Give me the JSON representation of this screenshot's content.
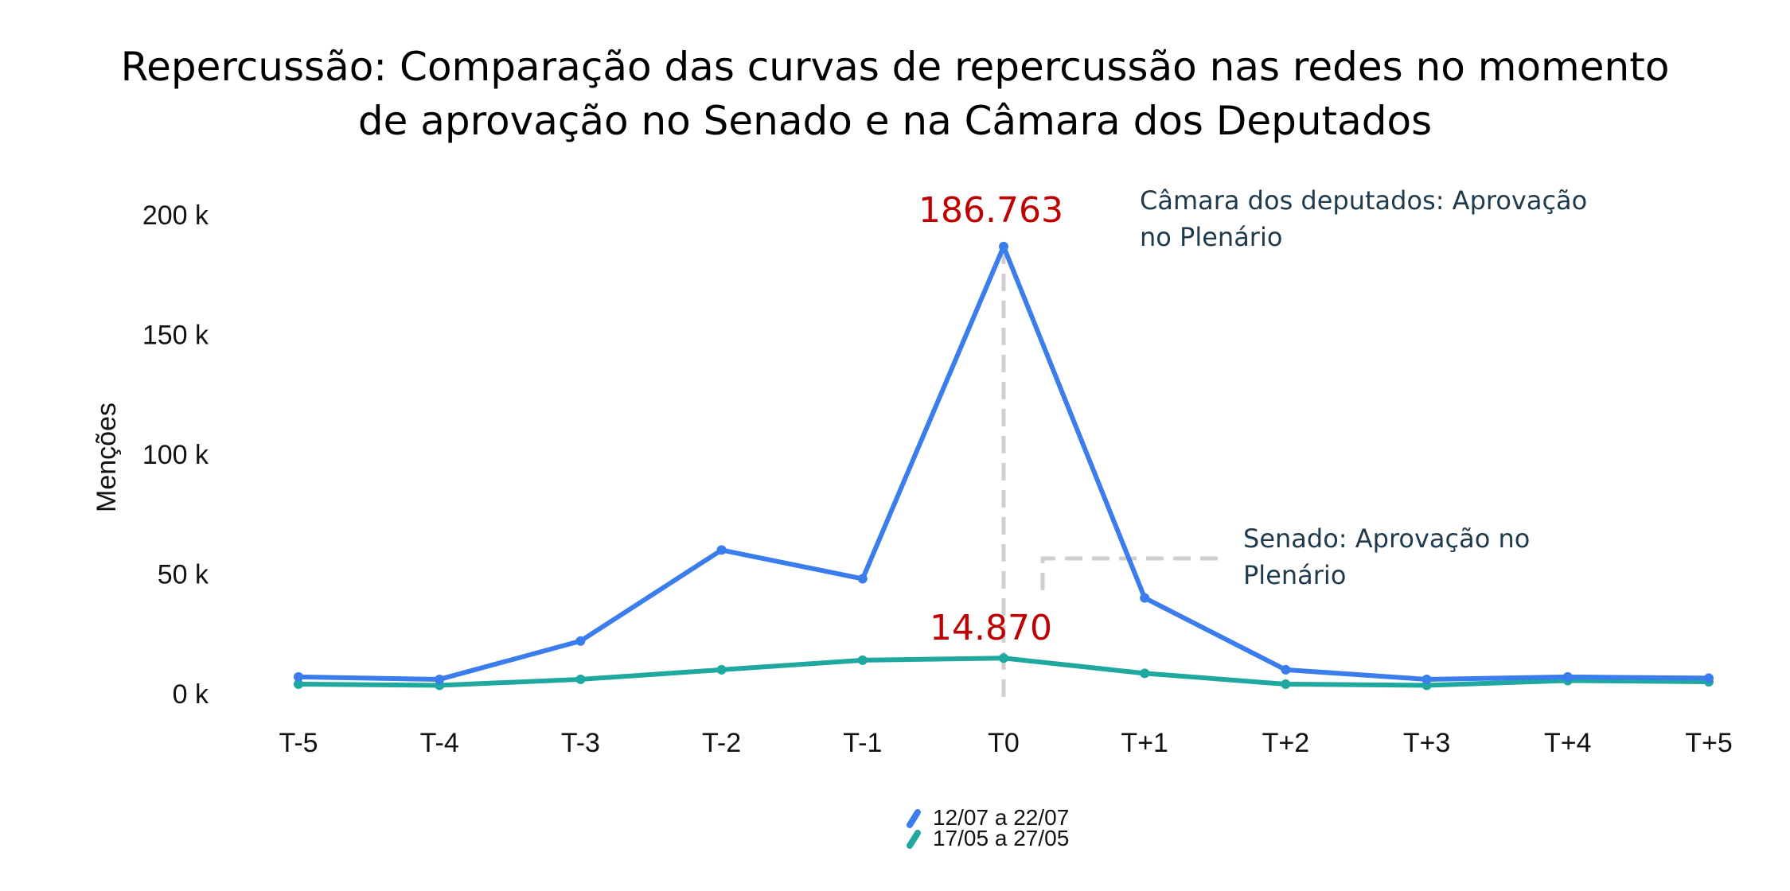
{
  "chart_data": {
    "type": "line",
    "title_lines": [
      "Repercussão: Comparação das curvas de repercussão nas redes no momento",
      "de aprovação no Senado e na Câmara dos Deputados"
    ],
    "xlabel": "",
    "ylabel": "Menções",
    "categories": [
      "T-5",
      "T-4",
      "T-3",
      "T-2",
      "T-1",
      "T0",
      "T+1",
      "T+2",
      "T+3",
      "T+4",
      "T+5"
    ],
    "yticks": [
      {
        "value": 0,
        "label": "0 k"
      },
      {
        "value": 50000,
        "label": "50 k"
      },
      {
        "value": 100000,
        "label": "100 k"
      },
      {
        "value": 150000,
        "label": "150 k"
      },
      {
        "value": 200000,
        "label": "200 k"
      }
    ],
    "ylim": [
      0,
      200000
    ],
    "grid": false,
    "legend_position": "bottom-center",
    "series": [
      {
        "name": "12/07 a 22/07",
        "color": "#3b7ded",
        "values": [
          7000,
          6000,
          22000,
          60000,
          48000,
          186763,
          40000,
          10000,
          6000,
          7000,
          6500
        ]
      },
      {
        "name": "17/05 a 27/05",
        "color": "#1ea8a0",
        "values": [
          4000,
          3500,
          6000,
          10000,
          14000,
          14870,
          8500,
          4000,
          3500,
          5500,
          5000
        ]
      }
    ],
    "annotations": {
      "peak_camara": "186.763",
      "peak_senado": "14.870",
      "camara_label_lines": [
        "Câmara dos deputados: Aprovação",
        "no Plenário"
      ],
      "senado_label_lines": [
        "Senado: Aprovação no",
        "Plenário"
      ]
    }
  }
}
